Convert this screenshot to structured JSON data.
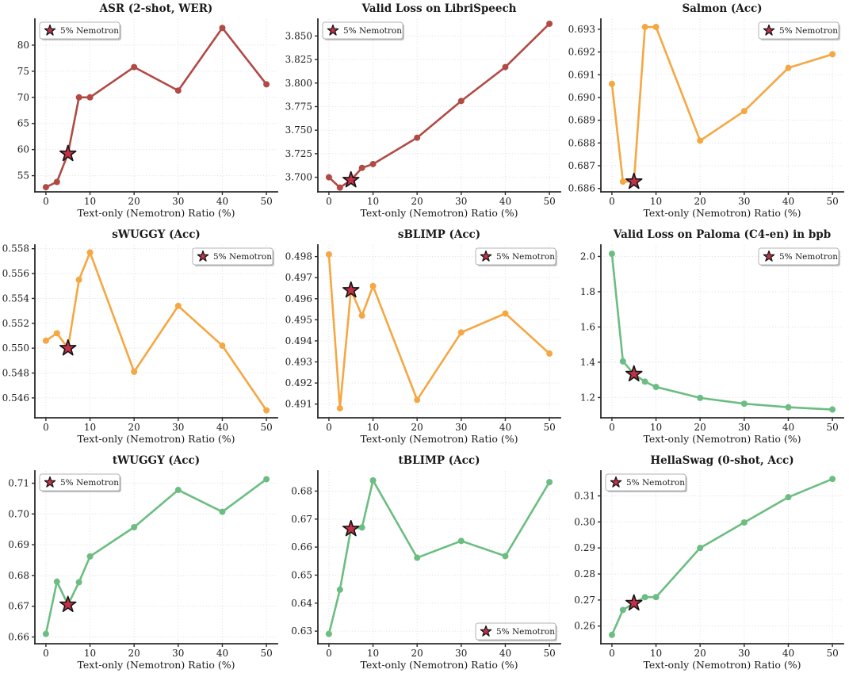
{
  "figure": {
    "xlabel": "Text-only (Nemotron) Ratio (%)",
    "legend_label": "5% Nemotron",
    "xtick_labels": [
      "0",
      "10",
      "20",
      "30",
      "40",
      "50"
    ],
    "colors": {
      "red": "#b14a45",
      "orange": "#f5a743",
      "green": "#6cbd82",
      "star_fill": "#c13148",
      "star_edge": "#141414",
      "grid": "#dcdcdc",
      "spine": "#2b2b2b",
      "text": "#1a1a1a",
      "legend_border": "#b3b3b3",
      "legend_bg": "#ffffff"
    }
  },
  "chart_data": [
    {
      "type": "line",
      "title": "ASR (2-shot, WER)",
      "xlabel": "Text-only (Nemotron) Ratio (%)",
      "x": [
        0,
        2.5,
        5,
        7.5,
        10,
        20,
        30,
        40,
        50
      ],
      "y": [
        52.8,
        53.8,
        59.2,
        70.0,
        70.0,
        75.8,
        71.3,
        83.3,
        72.5
      ],
      "color_key": "red",
      "legend": {
        "label": "5% Nemotron",
        "position": "top-left"
      },
      "star": {
        "x": 5,
        "y": 59.2
      },
      "xticks": [
        0,
        10,
        20,
        30,
        40,
        50
      ],
      "ytick_labels": [
        "55",
        "60",
        "65",
        "70",
        "75",
        "80"
      ],
      "xlim": [
        -2.5,
        52.5
      ],
      "ylim": [
        51.9,
        85.0
      ],
      "grid": true
    },
    {
      "type": "line",
      "title": "Valid Loss on LibriSpeech",
      "xlabel": "Text-only (Nemotron) Ratio (%)",
      "x": [
        0,
        2.5,
        5,
        7.5,
        10,
        20,
        30,
        40,
        50
      ],
      "y": [
        3.7,
        3.689,
        3.697,
        3.71,
        3.714,
        3.742,
        3.781,
        3.817,
        3.863
      ],
      "color_key": "red",
      "legend": {
        "label": "5% Nemotron",
        "position": "top-left"
      },
      "star": {
        "x": 5,
        "y": 3.697
      },
      "xticks": [
        0,
        10,
        20,
        30,
        40,
        50
      ],
      "ytick_labels": [
        "3.700",
        "3.725",
        "3.750",
        "3.775",
        "3.800",
        "3.825",
        "3.850"
      ],
      "xlim": [
        -2.5,
        52.5
      ],
      "ylim": [
        3.6845,
        3.868
      ],
      "grid": true
    },
    {
      "type": "line",
      "title": "Salmon (Acc)",
      "xlabel": "Text-only (Nemotron) Ratio (%)",
      "x": [
        0,
        2.5,
        5,
        7.5,
        10,
        20,
        30,
        40,
        50
      ],
      "y": [
        0.6906,
        0.6863,
        0.6863,
        0.6931,
        0.6931,
        0.6881,
        0.6894,
        0.6913,
        0.6919
      ],
      "color_key": "orange",
      "legend": {
        "label": "5% Nemotron",
        "position": "top-right"
      },
      "star": {
        "x": 5,
        "y": 0.6863
      },
      "xticks": [
        0,
        10,
        20,
        30,
        40,
        50
      ],
      "ytick_labels": [
        "0.686",
        "0.687",
        "0.688",
        "0.689",
        "0.690",
        "0.691",
        "0.692",
        "0.693"
      ],
      "xlim": [
        -2.5,
        52.5
      ],
      "ylim": [
        0.68585,
        0.69345
      ],
      "grid": true
    },
    {
      "type": "line",
      "title": "sWUGGY (Acc)",
      "xlabel": "Text-only (Nemotron) Ratio (%)",
      "x": [
        0,
        2.5,
        5,
        7.5,
        10,
        20,
        30,
        40,
        50
      ],
      "y": [
        0.5506,
        0.5512,
        0.55,
        0.5555,
        0.5577,
        0.5481,
        0.5534,
        0.5502,
        0.545
      ],
      "color_key": "orange",
      "legend": {
        "label": "5% Nemotron",
        "position": "top-right"
      },
      "star": {
        "x": 5,
        "y": 0.55
      },
      "xticks": [
        0,
        10,
        20,
        30,
        40,
        50
      ],
      "ytick_labels": [
        "0.546",
        "0.548",
        "0.550",
        "0.552",
        "0.554",
        "0.556",
        "0.558"
      ],
      "xlim": [
        -2.5,
        52.5
      ],
      "ylim": [
        0.5444,
        0.5583
      ],
      "grid": true
    },
    {
      "type": "line",
      "title": "sBLIMP (Acc)",
      "xlabel": "Text-only (Nemotron) Ratio (%)",
      "x": [
        0,
        2.5,
        5,
        7.5,
        10,
        20,
        30,
        40,
        50
      ],
      "y": [
        0.4981,
        0.4908,
        0.4964,
        0.4952,
        0.4966,
        0.4912,
        0.4944,
        0.4953,
        0.4934
      ],
      "color_key": "orange",
      "legend": {
        "label": "5% Nemotron",
        "position": "top-right"
      },
      "star": {
        "x": 5,
        "y": 0.4964
      },
      "xticks": [
        0,
        10,
        20,
        30,
        40,
        50
      ],
      "ytick_labels": [
        "0.491",
        "0.492",
        "0.493",
        "0.494",
        "0.495",
        "0.496",
        "0.497",
        "0.498"
      ],
      "xlim": [
        -2.5,
        52.5
      ],
      "ylim": [
        0.49035,
        0.49855
      ],
      "grid": true
    },
    {
      "type": "line",
      "title": "Valid Loss on Paloma (C4-en) in bpb",
      "xlabel": "Text-only (Nemotron) Ratio (%)",
      "x": [
        0,
        2.5,
        5,
        7.5,
        10,
        20,
        30,
        40,
        50
      ],
      "y": [
        2.015,
        1.405,
        1.333,
        1.29,
        1.26,
        1.198,
        1.165,
        1.145,
        1.132
      ],
      "color_key": "green",
      "legend": {
        "label": "5% Nemotron",
        "position": "top-right"
      },
      "star": {
        "x": 5,
        "y": 1.333
      },
      "xticks": [
        0,
        10,
        20,
        30,
        40,
        50
      ],
      "ytick_labels": [
        "1.2",
        "1.4",
        "1.6",
        "1.8",
        "2.0"
      ],
      "xlim": [
        -2.5,
        52.5
      ],
      "ylim": [
        1.085,
        2.065
      ],
      "grid": true
    },
    {
      "type": "line",
      "title": "tWUGGY (Acc)",
      "xlabel": "Text-only (Nemotron) Ratio (%)",
      "x": [
        0,
        2.5,
        5,
        7.5,
        10,
        20,
        30,
        40,
        50
      ],
      "y": [
        0.661,
        0.678,
        0.6705,
        0.6778,
        0.6862,
        0.6957,
        0.7078,
        0.7007,
        0.7113
      ],
      "color_key": "green",
      "legend": {
        "label": "5% Nemotron",
        "position": "top-left"
      },
      "star": {
        "x": 5,
        "y": 0.6705
      },
      "xticks": [
        0,
        10,
        20,
        30,
        40,
        50
      ],
      "ytick_labels": [
        "0.66",
        "0.67",
        "0.68",
        "0.69",
        "0.70",
        "0.71"
      ],
      "xlim": [
        -2.5,
        52.5
      ],
      "ylim": [
        0.6578,
        0.714
      ],
      "grid": true
    },
    {
      "type": "line",
      "title": "tBLIMP (Acc)",
      "xlabel": "Text-only (Nemotron) Ratio (%)",
      "x": [
        0,
        2.5,
        5,
        7.5,
        10,
        20,
        30,
        40,
        50
      ],
      "y": [
        0.629,
        0.6448,
        0.6665,
        0.667,
        0.6838,
        0.6562,
        0.6622,
        0.6568,
        0.6832
      ],
      "color_key": "green",
      "legend": {
        "label": "5% Nemotron",
        "position": "bottom-right"
      },
      "star": {
        "x": 5,
        "y": 0.6665
      },
      "xticks": [
        0,
        10,
        20,
        30,
        40,
        50
      ],
      "ytick_labels": [
        "0.63",
        "0.64",
        "0.65",
        "0.66",
        "0.67",
        "0.68"
      ],
      "xlim": [
        -2.5,
        52.5
      ],
      "ylim": [
        0.6255,
        0.6872
      ],
      "grid": true
    },
    {
      "type": "line",
      "title": "HellaSwag (0-shot, Acc)",
      "xlabel": "Text-only (Nemotron) Ratio (%)",
      "x": [
        0,
        2.5,
        5,
        7.5,
        10,
        20,
        30,
        40,
        50
      ],
      "y": [
        0.2566,
        0.2662,
        0.2688,
        0.2711,
        0.2711,
        0.29,
        0.2998,
        0.3095,
        0.3165
      ],
      "color_key": "green",
      "legend": {
        "label": "5% Nemotron",
        "position": "top-left"
      },
      "star": {
        "x": 5,
        "y": 0.2688
      },
      "xticks": [
        0,
        10,
        20,
        30,
        40,
        50
      ],
      "ytick_labels": [
        "0.26",
        "0.27",
        "0.28",
        "0.29",
        "0.30",
        "0.31"
      ],
      "xlim": [
        -2.5,
        52.5
      ],
      "ylim": [
        0.2532,
        0.3196
      ],
      "grid": true
    }
  ]
}
